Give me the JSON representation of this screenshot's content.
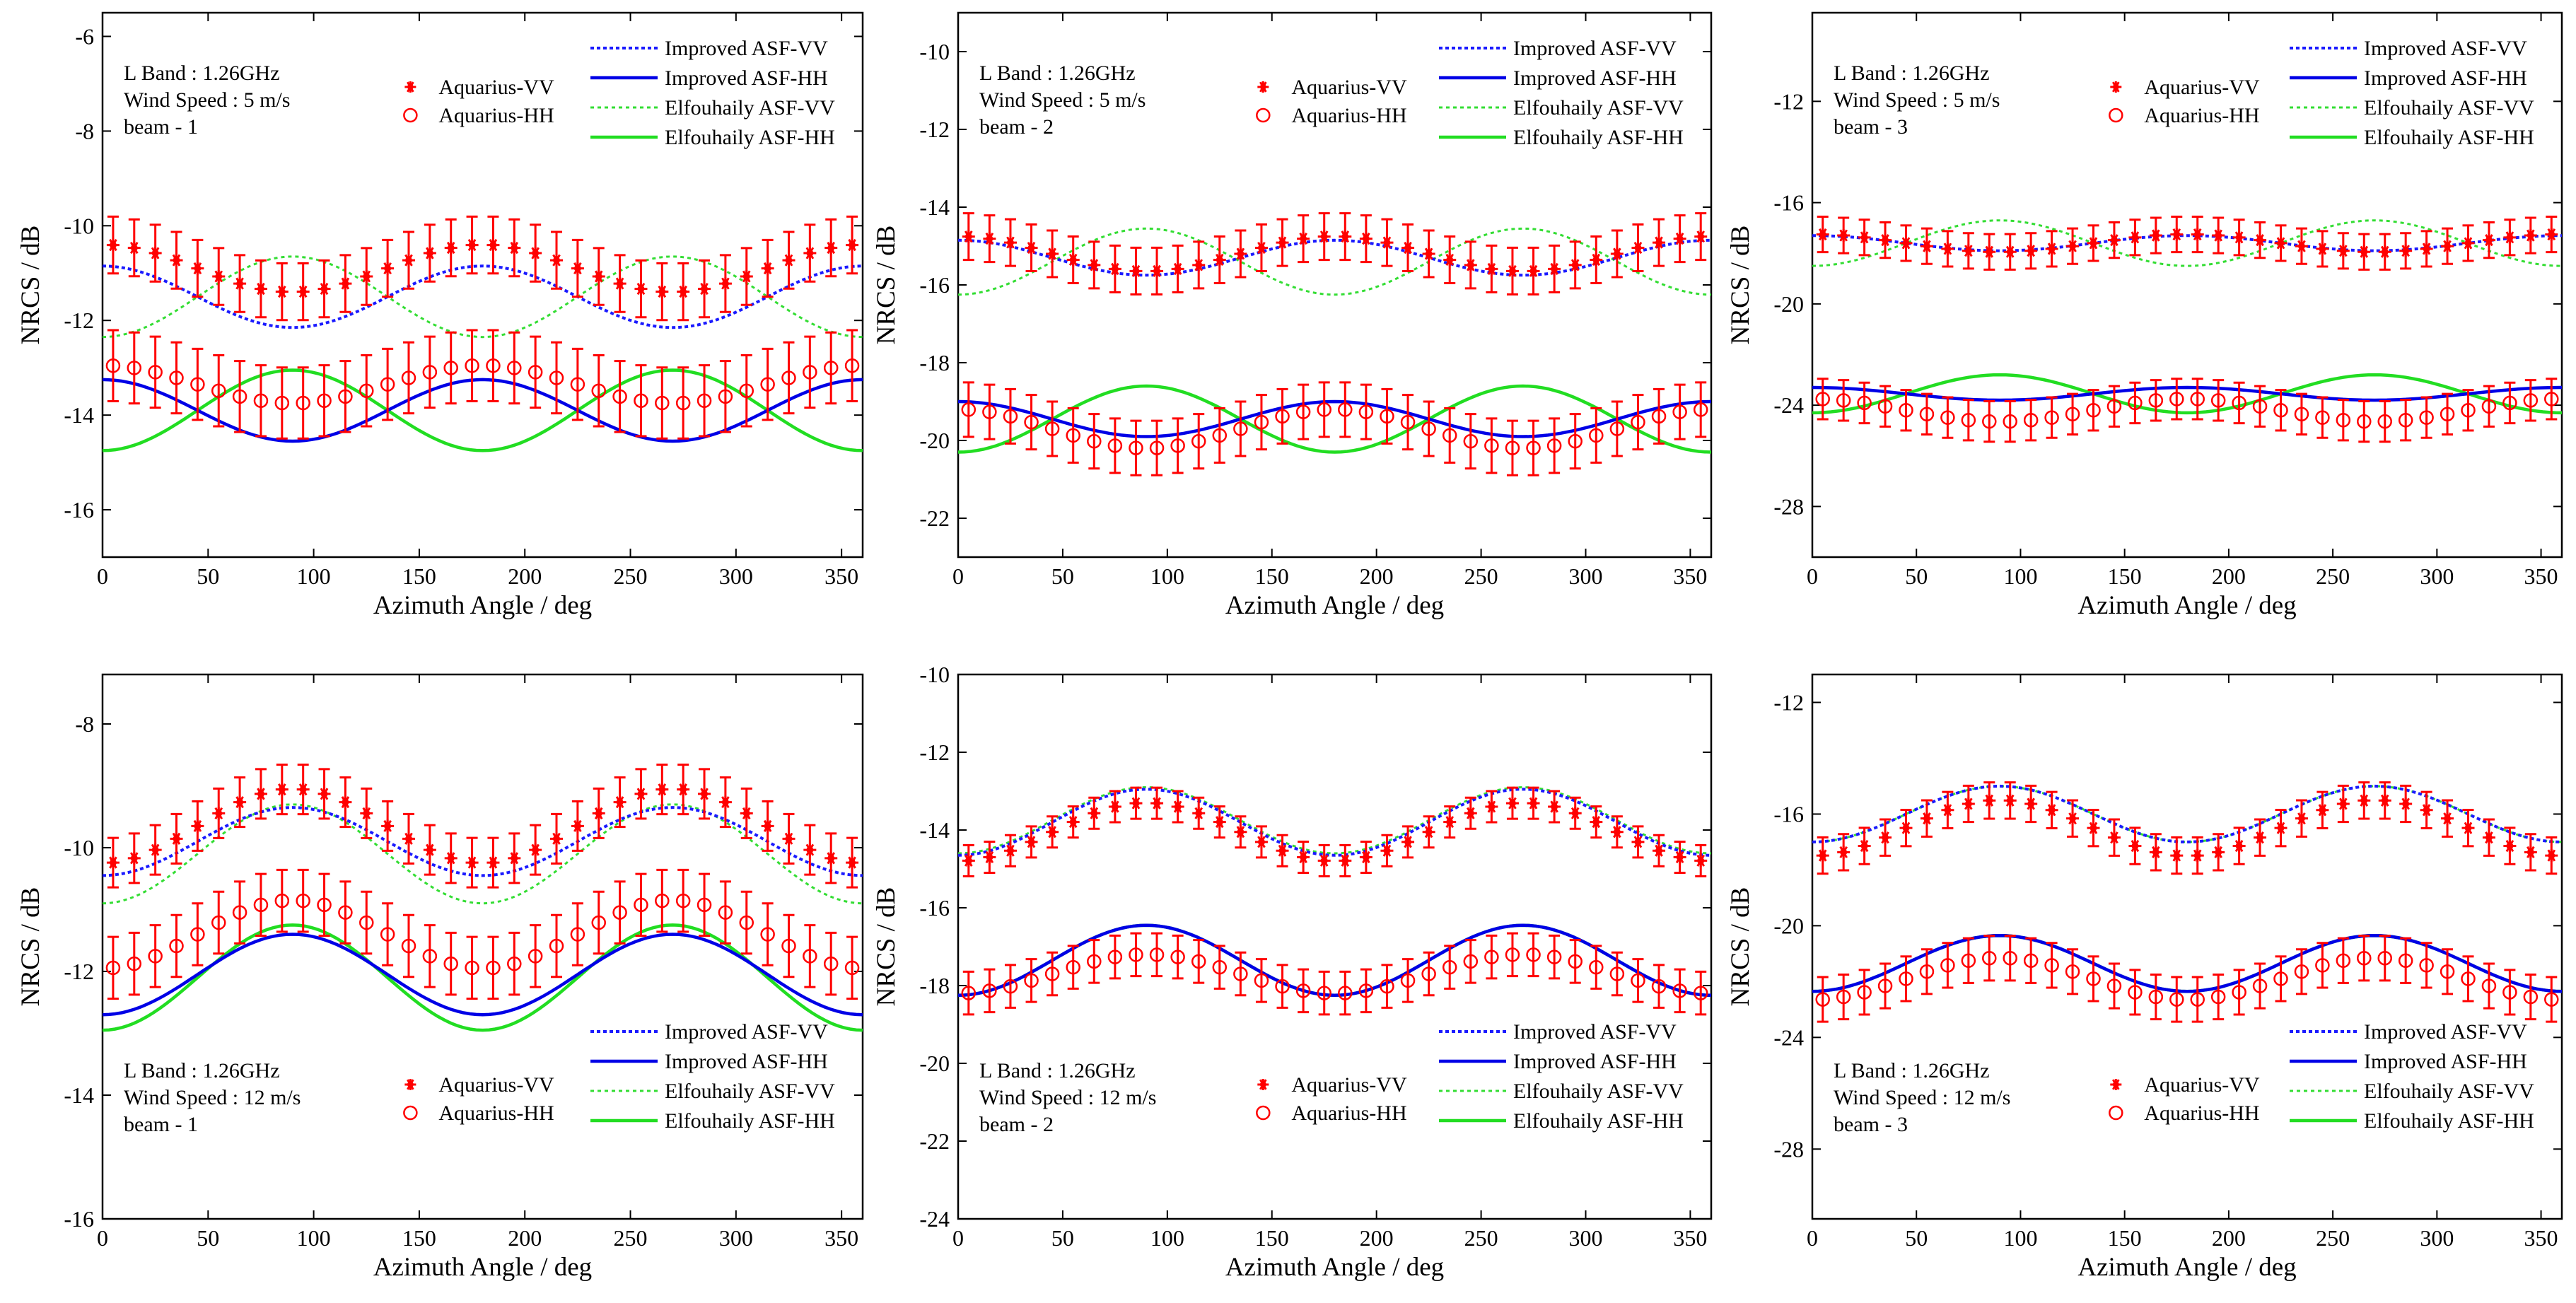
{
  "colors": {
    "vv_marker": "#ff0000",
    "errorbar": "#ff0000",
    "improved_vv": "#1a1aff",
    "improved_hh": "#0000e6",
    "elfouhaily_vv": "#33dd33",
    "elfouhaily_hh": "#22dd22",
    "axes": "#000000"
  },
  "legend_labels": {
    "improved_vv": "Improved ASF-VV",
    "improved_hh": "Improved ASF-HH",
    "elfouhaily_vv": "Elfouhaily ASF-VV",
    "elfouhaily_hh": "Elfouhaily ASF-HH",
    "aquarius_vv": "Aquarius-VV",
    "aquarius_hh": "Aquarius-HH"
  },
  "chart_data": [
    {
      "type": "line",
      "band": "L Band : 1.26GHz",
      "wind": "Wind Speed : 5 m/s",
      "beam": "beam - 1",
      "xlabel": "Azimuth Angle / deg",
      "ylabel": "NRCS / dB",
      "xlim": [
        0,
        360
      ],
      "ylim": [
        -17,
        -5.5
      ],
      "xticks": [
        "0",
        "50",
        "100",
        "150",
        "200",
        "250",
        "300",
        "350"
      ],
      "yticks": [
        "-6",
        "-8",
        "-10",
        "-12",
        "-14",
        "-16"
      ],
      "ytick_values": [
        -6,
        -8,
        -10,
        -12,
        -14,
        -16
      ],
      "legend_position": "top-right",
      "info_position": "top-left",
      "series": {
        "improved_vv": {
          "mean": -11.5,
          "amp": 0.65,
          "harmonic": 2,
          "phase": 1
        },
        "improved_hh": {
          "mean": -13.9,
          "amp": 0.65,
          "harmonic": 2,
          "phase": 1
        },
        "elfouhaily_vv": {
          "mean": -11.5,
          "amp": 0.85,
          "harmonic": 2,
          "phase": -1
        },
        "elfouhaily_hh": {
          "mean": -13.9,
          "amp": 0.85,
          "harmonic": 2,
          "phase": -1
        },
        "aquarius_vv": {
          "mean": -10.9,
          "amp": 0.5,
          "harmonic": 2,
          "phase": 1,
          "err": 0.6
        },
        "aquarius_hh": {
          "mean": -13.35,
          "amp": 0.4,
          "harmonic": 2,
          "phase": 1,
          "err": 0.75
        }
      }
    },
    {
      "type": "line",
      "band": "L Band : 1.26GHz",
      "wind": "Wind Speed : 5 m/s",
      "beam": "beam - 2",
      "xlabel": "Azimuth Angle / deg",
      "ylabel": "NRCS / dB",
      "xlim": [
        0,
        360
      ],
      "ylim": [
        -23,
        -9
      ],
      "xticks": [
        "0",
        "50",
        "100",
        "150",
        "200",
        "250",
        "300",
        "350"
      ],
      "yticks": [
        "-10",
        "-12",
        "-14",
        "-16",
        "-18",
        "-20",
        "-22"
      ],
      "ytick_values": [
        -10,
        -12,
        -14,
        -16,
        -18,
        -20,
        -22
      ],
      "legend_position": "top-right",
      "info_position": "top-left",
      "series": {
        "improved_vv": {
          "mean": -15.3,
          "amp": 0.45,
          "harmonic": 2,
          "phase": 1
        },
        "improved_hh": {
          "mean": -19.45,
          "amp": 0.45,
          "harmonic": 2,
          "phase": 1
        },
        "elfouhaily_vv": {
          "mean": -15.4,
          "amp": 0.85,
          "harmonic": 2,
          "phase": -1
        },
        "elfouhaily_hh": {
          "mean": -19.45,
          "amp": 0.85,
          "harmonic": 2,
          "phase": -1
        },
        "aquarius_vv": {
          "mean": -15.2,
          "amp": 0.45,
          "harmonic": 2,
          "phase": 1,
          "err": 0.6
        },
        "aquarius_hh": {
          "mean": -19.7,
          "amp": 0.5,
          "harmonic": 2,
          "phase": 1,
          "err": 0.7
        }
      }
    },
    {
      "type": "line",
      "band": "L Band : 1.26GHz",
      "wind": "Wind Speed : 5 m/s",
      "beam": "beam - 3",
      "xlabel": "Azimuth Angle / deg",
      "ylabel": "NRCS / dB",
      "xlim": [
        0,
        360
      ],
      "ylim": [
        -30,
        -8.5
      ],
      "xticks": [
        "0",
        "50",
        "100",
        "150",
        "200",
        "250",
        "300",
        "350"
      ],
      "yticks": [
        "-12",
        "-16",
        "-20",
        "-24",
        "-28"
      ],
      "ytick_values": [
        -12,
        -16,
        -20,
        -24,
        -28
      ],
      "legend_position": "top-right",
      "info_position": "top-left",
      "series": {
        "improved_vv": {
          "mean": -17.6,
          "amp": 0.3,
          "harmonic": 2,
          "phase": 1
        },
        "improved_hh": {
          "mean": -23.55,
          "amp": 0.25,
          "harmonic": 2,
          "phase": 1
        },
        "elfouhaily_vv": {
          "mean": -17.6,
          "amp": 0.9,
          "harmonic": 2,
          "phase": -1
        },
        "elfouhaily_hh": {
          "mean": -23.55,
          "amp": 0.75,
          "harmonic": 2,
          "phase": -1
        },
        "aquarius_vv": {
          "mean": -17.6,
          "amp": 0.35,
          "harmonic": 2,
          "phase": 1,
          "err": 0.7
        },
        "aquarius_hh": {
          "mean": -24.2,
          "amp": 0.45,
          "harmonic": 2,
          "phase": 1,
          "err": 0.8
        }
      }
    },
    {
      "type": "line",
      "band": "L Band : 1.26GHz",
      "wind": "Wind Speed : 12 m/s",
      "beam": "beam - 1",
      "xlabel": "Azimuth Angle / deg",
      "ylabel": "NRCS / dB",
      "xlim": [
        0,
        360
      ],
      "ylim": [
        -16,
        -7.2
      ],
      "xticks": [
        "0",
        "50",
        "100",
        "150",
        "200",
        "250",
        "300",
        "350"
      ],
      "yticks": [
        "-8",
        "-10",
        "-12",
        "-14",
        "-16"
      ],
      "ytick_values": [
        -8,
        -10,
        -12,
        -14,
        -16
      ],
      "legend_position": "bottom-right",
      "info_position": "bottom-left",
      "series": {
        "improved_vv": {
          "mean": -9.9,
          "amp": 0.55,
          "harmonic": 2,
          "phase": -1
        },
        "improved_hh": {
          "mean": -12.05,
          "amp": 0.65,
          "harmonic": 2,
          "phase": -1
        },
        "elfouhaily_vv": {
          "mean": -10.1,
          "amp": 0.8,
          "harmonic": 2,
          "phase": -1
        },
        "elfouhaily_hh": {
          "mean": -12.1,
          "amp": 0.85,
          "harmonic": 2,
          "phase": -1
        },
        "aquarius_vv": {
          "mean": -9.65,
          "amp": 0.6,
          "harmonic": 2,
          "phase": -1,
          "err": 0.4
        },
        "aquarius_hh": {
          "mean": -11.4,
          "amp": 0.55,
          "harmonic": 2,
          "phase": -1,
          "err": 0.5
        }
      }
    },
    {
      "type": "line",
      "band": "L Band : 1.26GHz",
      "wind": "Wind Speed : 12 m/s",
      "beam": "beam - 2",
      "xlabel": "Azimuth Angle / deg",
      "ylabel": "NRCS / dB",
      "xlim": [
        0,
        360
      ],
      "ylim": [
        -24,
        -10
      ],
      "xticks": [
        "0",
        "50",
        "100",
        "150",
        "200",
        "250",
        "300",
        "350"
      ],
      "yticks": [
        "-10",
        "-12",
        "-14",
        "-16",
        "-18",
        "-20",
        "-22",
        "-24"
      ],
      "ytick_values": [
        -10,
        -12,
        -14,
        -16,
        -18,
        -20,
        -22,
        -24
      ],
      "legend_position": "bottom-right",
      "info_position": "bottom-left",
      "series": {
        "improved_vv": {
          "mean": -13.8,
          "amp": 0.85,
          "harmonic": 2,
          "phase": -1
        },
        "improved_hh": {
          "mean": -17.35,
          "amp": 0.9,
          "harmonic": 2,
          "phase": -1
        },
        "elfouhaily_vv": {
          "mean": -13.75,
          "amp": 0.85,
          "harmonic": 2,
          "phase": -1
        },
        "elfouhaily_hh": {
          "mean": -17.35,
          "amp": 0.9,
          "harmonic": 2,
          "phase": -1
        },
        "aquarius_vv": {
          "mean": -14.05,
          "amp": 0.75,
          "harmonic": 2,
          "phase": -1,
          "err": 0.4
        },
        "aquarius_hh": {
          "mean": -17.7,
          "amp": 0.5,
          "harmonic": 2,
          "phase": -1,
          "err": 0.55
        }
      }
    },
    {
      "type": "line",
      "band": "L Band : 1.26GHz",
      "wind": "Wind Speed : 12 m/s",
      "beam": "beam - 3",
      "xlabel": "Azimuth Angle / deg",
      "ylabel": "NRCS / dB",
      "xlim": [
        0,
        360
      ],
      "ylim": [
        -30.5,
        -11
      ],
      "xticks": [
        "0",
        "50",
        "100",
        "150",
        "200",
        "250",
        "300",
        "350"
      ],
      "yticks": [
        "-12",
        "-16",
        "-20",
        "-24",
        "-28"
      ],
      "ytick_values": [
        -12,
        -16,
        -20,
        -24,
        -28
      ],
      "legend_position": "bottom-right",
      "info_position": "bottom-left",
      "series": {
        "improved_vv": {
          "mean": -16.0,
          "amp": 1.0,
          "harmonic": 2,
          "phase": -1
        },
        "improved_hh": {
          "mean": -21.35,
          "amp": 1.0,
          "harmonic": 2,
          "phase": -1
        },
        "elfouhaily_vv": {
          "mean": -16.0,
          "amp": 1.0,
          "harmonic": 2,
          "phase": -1
        },
        "elfouhaily_hh": {
          "mean": -21.35,
          "amp": 1.0,
          "harmonic": 2,
          "phase": -1
        },
        "aquarius_vv": {
          "mean": -16.5,
          "amp": 1.0,
          "harmonic": 2,
          "phase": -1,
          "err": 0.65
        },
        "aquarius_hh": {
          "mean": -21.9,
          "amp": 0.75,
          "harmonic": 2,
          "phase": -1,
          "err": 0.8
        }
      }
    }
  ]
}
